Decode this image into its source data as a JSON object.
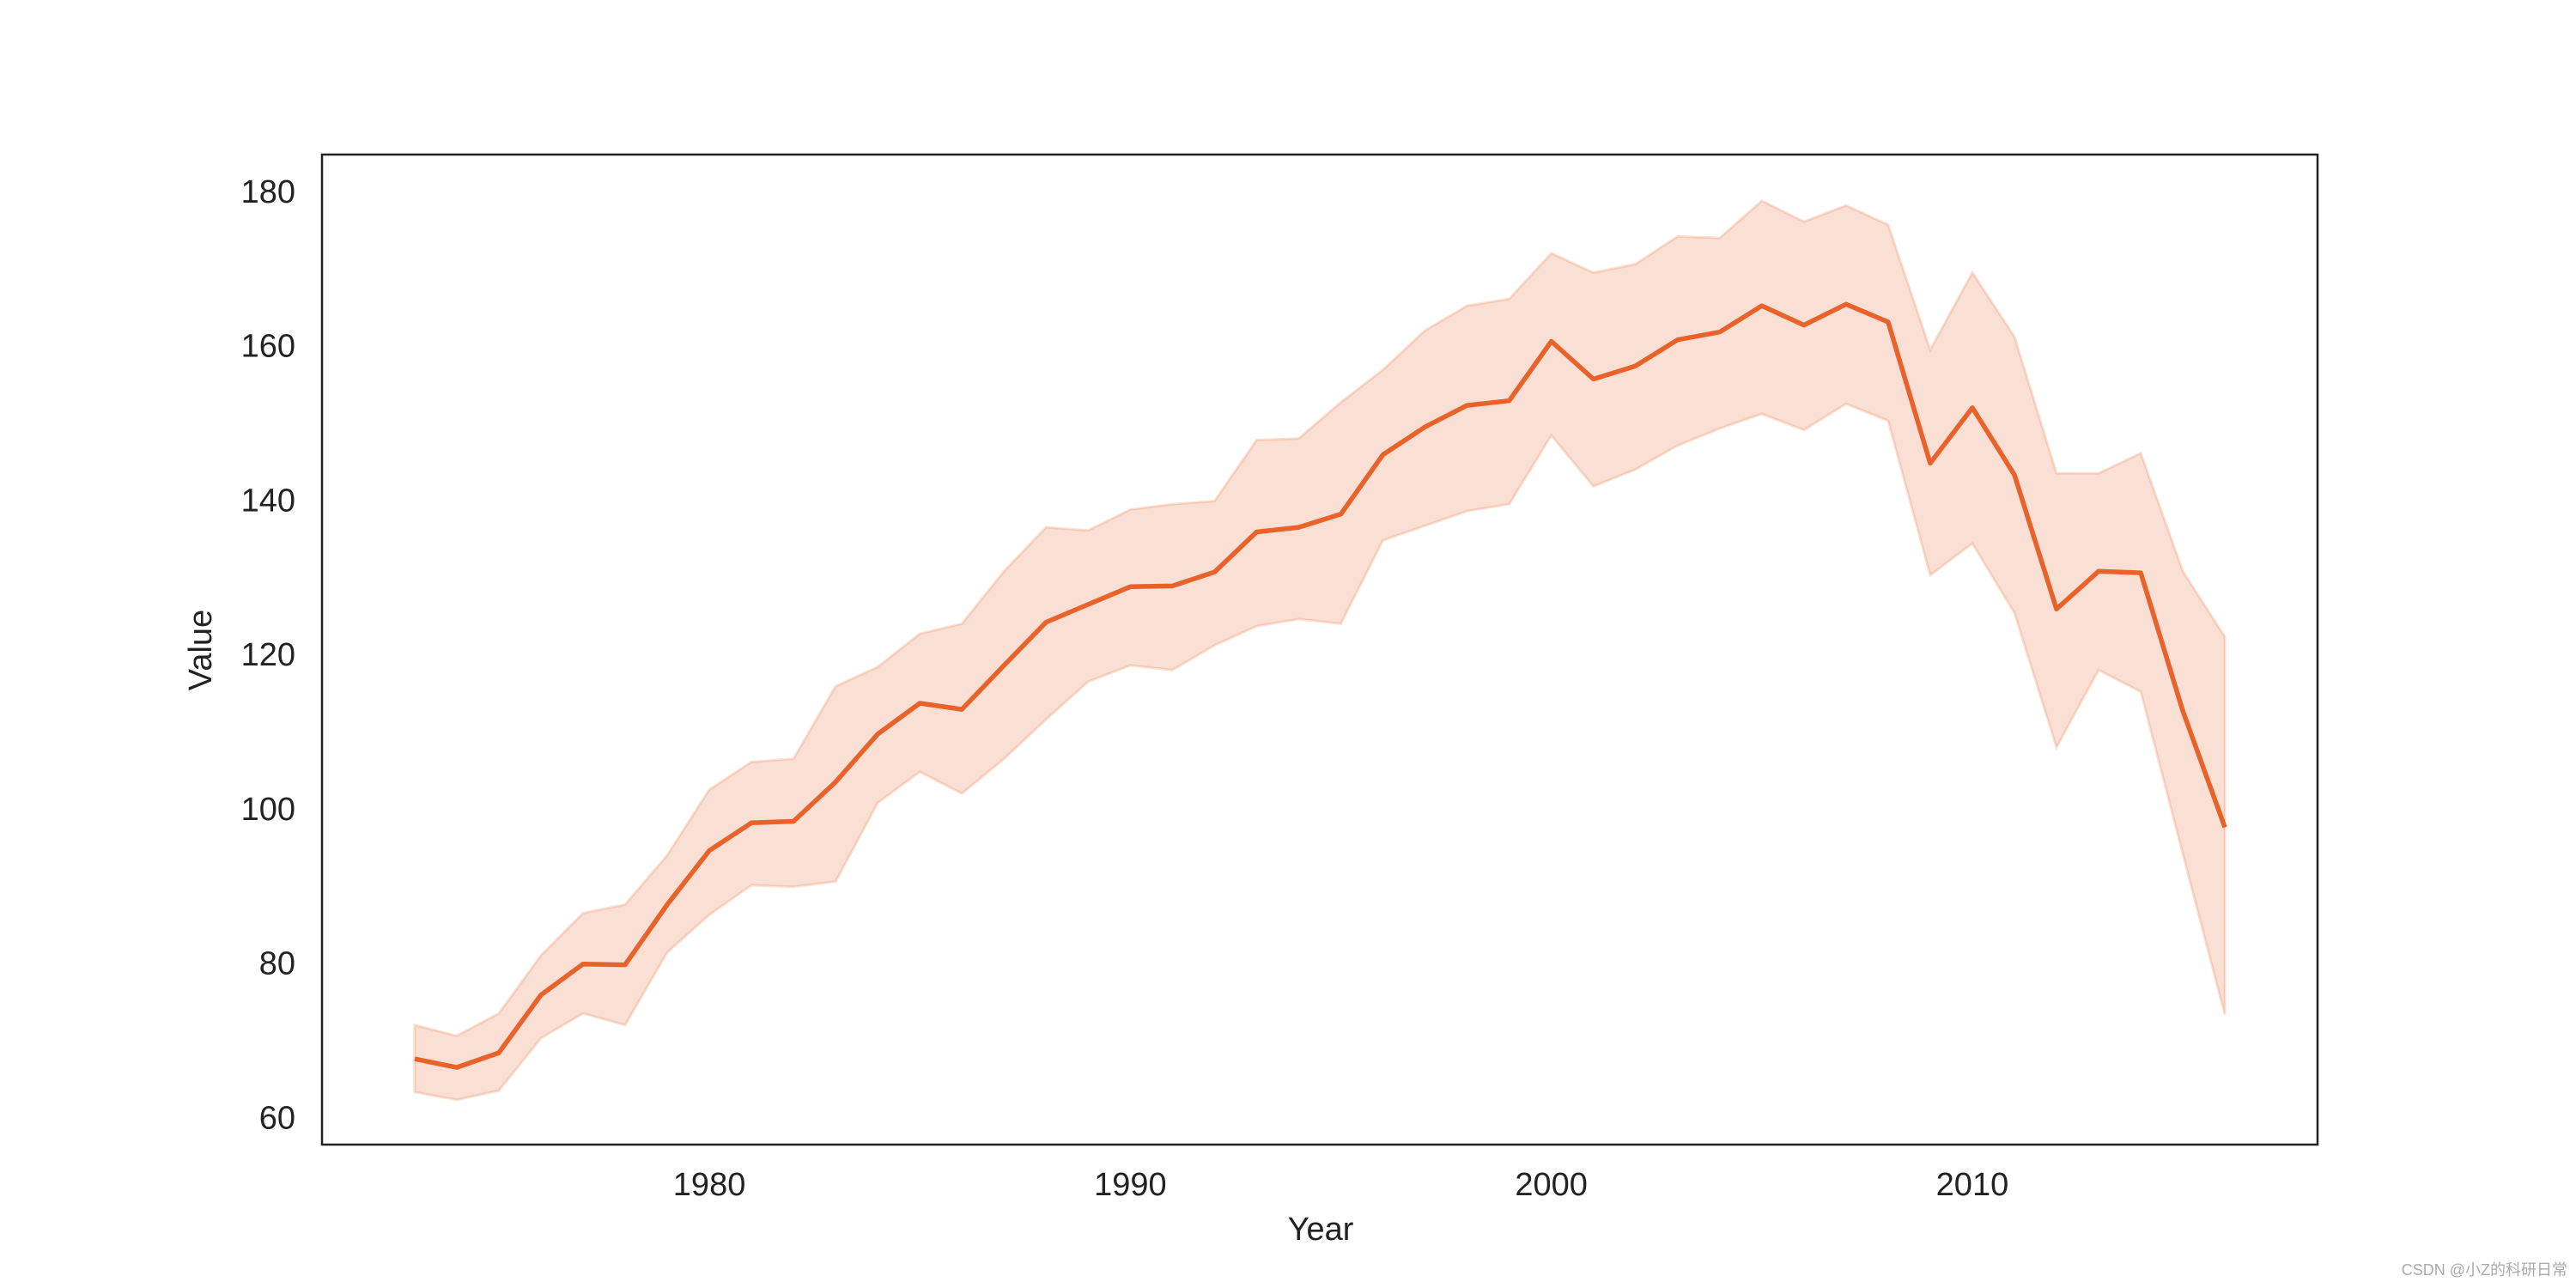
{
  "chart_data": {
    "type": "line",
    "xlabel": "Year",
    "ylabel": "Value",
    "x": [
      1973,
      1974,
      1975,
      1976,
      1977,
      1978,
      1979,
      1980,
      1981,
      1982,
      1983,
      1984,
      1985,
      1986,
      1987,
      1988,
      1989,
      1990,
      1991,
      1992,
      1993,
      1994,
      1995,
      1996,
      1997,
      1998,
      1999,
      2000,
      2001,
      2002,
      2003,
      2004,
      2005,
      2006,
      2007,
      2008,
      2009,
      2010,
      2011,
      2012,
      2013,
      2014,
      2015,
      2016
    ],
    "values": [
      67.9,
      66.8,
      68.7,
      76.2,
      80.2,
      80.1,
      87.9,
      94.9,
      98.5,
      98.7,
      103.8,
      110,
      114,
      113.2,
      118.9,
      124.5,
      126.8,
      129.1,
      129.2,
      131,
      136.2,
      136.8,
      138.5,
      146.2,
      149.8,
      152.6,
      153.2,
      160.9,
      156,
      157.7,
      161.1,
      162.1,
      165.5,
      163,
      165.7,
      163.4,
      145.1,
      152.3,
      143.6,
      126.2,
      131.1,
      130.9,
      113,
      97.9
    ],
    "upper": [
      72.3,
      70.9,
      73.8,
      81.3,
      86.8,
      87.9,
      94.3,
      102.8,
      106.4,
      106.8,
      116.2,
      118.7,
      123,
      124.3,
      131.1,
      136.8,
      136.4,
      139.1,
      139.8,
      140.2,
      148.1,
      148.3,
      153,
      157.2,
      162.3,
      165.5,
      166.4,
      172.3,
      169.8,
      170.9,
      174.5,
      174.3,
      179.1,
      176.4,
      178.5,
      176,
      159.8,
      169.8,
      161.5,
      143.8,
      143.8,
      146.4,
      131.1,
      122.6
    ],
    "lower": [
      63.6,
      62.6,
      63.8,
      70.6,
      73.8,
      72.3,
      81.7,
      86.6,
      90.4,
      90.2,
      90.9,
      101.1,
      105.1,
      102.3,
      106.8,
      111.9,
      116.8,
      118.9,
      118.3,
      121.5,
      124,
      124.9,
      124.3,
      135.1,
      137,
      138.9,
      139.8,
      148.7,
      142.1,
      144.3,
      147.4,
      149.6,
      151.5,
      149.4,
      152.8,
      150.6,
      130.6,
      134.7,
      125.7,
      108.3,
      118.3,
      115.5,
      94.5,
      73.6
    ],
    "color": "#e8622a",
    "band_opacity": 0.2,
    "xlim": [
      1970.8,
      2018.2
    ],
    "xticks": [
      1980,
      1990,
      2000,
      2010
    ],
    "ylim": [
      56.8,
      185.1
    ],
    "yticks": [
      60,
      80,
      100,
      120,
      140,
      160,
      180
    ],
    "grid": false,
    "watermark": "CSDN @小Z的科研日常"
  }
}
